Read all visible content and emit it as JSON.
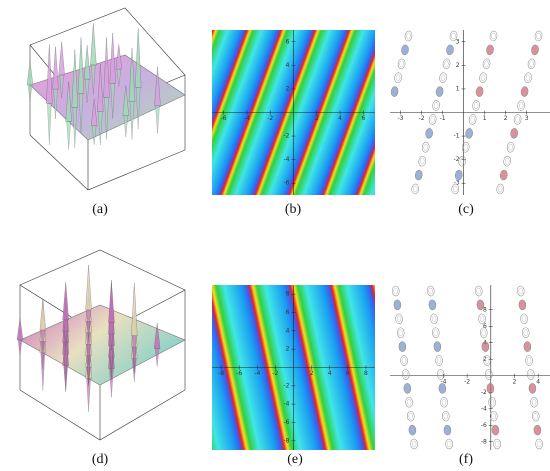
{
  "figure": {
    "panels": [
      {
        "caption": "(a)"
      },
      {
        "caption": "(b)",
        "xticks": [
          "-6",
          "-4",
          "-2",
          "2",
          "4",
          "6"
        ],
        "yticks": [
          "6",
          "4",
          "2",
          "-2",
          "-4",
          "-6"
        ]
      },
      {
        "caption": "(c)",
        "xticks": [
          "-3",
          "-2",
          "-1",
          "1",
          "2",
          "3"
        ],
        "yticks": [
          "3",
          "2",
          "1",
          "-1",
          "-2",
          "-3"
        ]
      },
      {
        "caption": "(d)"
      },
      {
        "caption": "(e)",
        "xticks": [
          "-8",
          "-6",
          "-4",
          "-2",
          "2",
          "4",
          "6",
          "8"
        ],
        "yticks": [
          "8",
          "6",
          "4",
          "2",
          "-2",
          "-4",
          "-6",
          "-8"
        ]
      },
      {
        "caption": "(f)",
        "xticks": [
          "-4",
          "-2",
          "2",
          "4"
        ],
        "yticks": [
          "8",
          "6",
          "4",
          "2",
          "-2",
          "-4",
          "-6",
          "-8"
        ]
      }
    ]
  }
}
